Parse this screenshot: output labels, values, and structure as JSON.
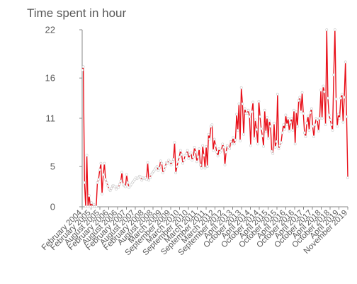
{
  "chart_data": {
    "type": "line",
    "title": "Time spent in hour",
    "xlabel": "",
    "ylabel": "",
    "ylim": [
      0,
      22
    ],
    "yticks": [
      0,
      5,
      11,
      16,
      22
    ],
    "grid": false,
    "legend": "none",
    "line_color": "#e8101a",
    "x_tick_labels": [
      "February 2004",
      "February 2005",
      "August 2005",
      "February 2006",
      "August 2006",
      "February 2007",
      "August 2007",
      "February 2008",
      "August 2008",
      "March 2009",
      "September 2009",
      "March 2010",
      "September 2010",
      "March 2011",
      "September 2011",
      "March 2012",
      "September 2012",
      "April 2013",
      "October 2013",
      "April 2014",
      "October 2014",
      "April 2015",
      "October 2015",
      "April 2016",
      "October 2016",
      "April 2017",
      "October 2017",
      "April 2018",
      "October 2018",
      "April 2019",
      "November 2019"
    ],
    "series": [
      {
        "values": [
          17,
          17.4,
          3,
          0,
          6.4,
          0,
          1.4,
          0,
          0.5,
          0,
          0.3,
          0,
          0,
          3,
          3.4,
          4.6,
          5.4,
          1.6,
          4,
          5.4,
          3.4,
          3,
          2.6,
          2.2,
          2,
          2.3,
          2.6,
          2.6,
          2.5,
          2.2,
          2.5,
          2.4,
          2.8,
          3.2,
          4.3,
          2.8,
          2.6,
          2.5,
          4,
          3,
          2.4,
          2.6,
          2.8,
          3,
          3.2,
          3.4,
          3.6,
          3.5,
          3.6,
          3.8,
          3.7,
          3.3,
          3.6,
          3.5,
          3.6,
          3.4,
          5.5,
          3.3,
          3.6,
          4,
          4.2,
          4.4,
          4.6,
          4.8,
          5,
          4.5,
          4.8,
          5.7,
          5.4,
          4.2,
          4.6,
          5,
          5.5,
          5.4,
          5.8,
          5.6,
          5.2,
          5.6,
          5.9,
          8,
          4.2,
          5,
          5.6,
          6.2,
          7,
          6.5,
          5.4,
          5.8,
          6.4,
          6.6,
          7,
          6,
          6.5,
          6.7,
          5.8,
          6.2,
          7.4,
          6.8,
          5.6,
          6.2,
          7.2,
          5.2,
          4.8,
          7.6,
          6.4,
          4.8,
          7.5,
          5,
          9,
          8.4,
          10,
          10.2,
          7,
          8.4,
          7.6,
          6.8,
          6.3,
          7.2,
          6.8,
          7,
          7.8,
          7.4,
          5.2,
          6.8,
          7.6,
          7.4,
          7.2,
          8.1,
          7.8,
          8.6,
          7.8,
          8.3,
          11.5,
          9.5,
          12.8,
          8.2,
          14.8,
          12.8,
          9,
          12.2,
          11.6,
          11.6,
          12,
          11.2,
          7.6,
          11.8,
          13,
          8.5,
          10.8,
          9.6,
          7.8,
          13.1,
          11.2,
          9.7,
          8.8,
          7.5,
          12,
          9.3,
          11.1,
          8.5,
          10.7,
          10,
          6.9,
          6.6,
          10.4,
          7.4,
          8.1,
          14,
          7.2,
          7.6,
          8,
          9.2,
          10.2,
          9.6,
          11.4,
          10.2,
          11,
          9.4,
          10.5,
          11,
          9.5,
          12,
          7.8,
          11.8,
          10,
          13.2,
          13.6,
          11.8,
          14.2,
          11.6,
          9.2,
          8.7,
          10.4,
          11.3,
          9.5,
          11.7,
          12.2,
          10,
          8.7,
          10.2,
          11,
          10.8,
          9.4,
          11,
          14.5,
          11,
          15,
          14.3,
          10.2,
          22,
          13.5,
          11.4,
          10.8,
          10.2,
          9.5,
          16.4,
          22,
          13.4,
          10,
          11.5,
          11,
          13.5,
          14,
          10.5,
          13.6,
          18,
          11.2,
          3.6
        ]
      }
    ]
  }
}
